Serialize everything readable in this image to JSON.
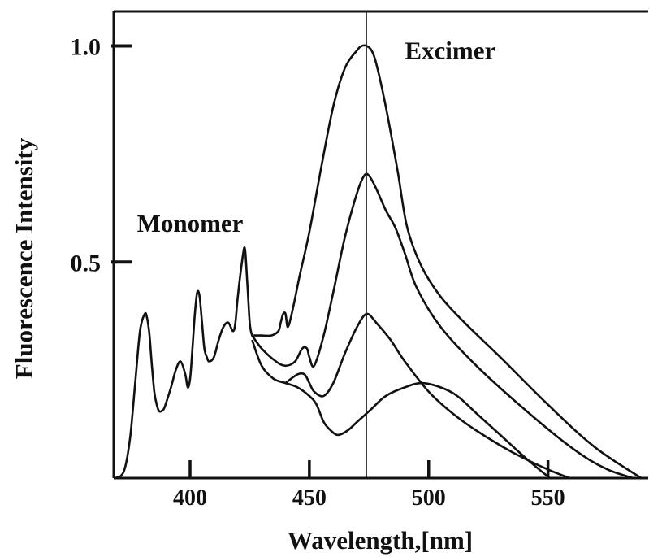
{
  "chart_data": {
    "type": "line",
    "title": "",
    "xlabel": "Wavelength,[nm]",
    "ylabel": "Fluorescence Intensity",
    "xlim": [
      368,
      592
    ],
    "ylim": [
      0,
      1.08
    ],
    "xticks": [
      400,
      450,
      500,
      550
    ],
    "xtick_labels": [
      "400",
      "450",
      "500",
      "550"
    ],
    "yticks": [
      0.5,
      1.0
    ],
    "ytick_labels": [
      "0.5",
      "1.0"
    ],
    "grid": false,
    "reference_line_x": 474,
    "annotations": [
      {
        "text": "Monomer",
        "x": 400,
        "y": 0.57
      },
      {
        "text": "Excimer",
        "x": 490,
        "y": 0.97
      }
    ],
    "series": [
      {
        "x": [
          368,
          371,
          373,
          375,
          377,
          379,
          381,
          382,
          383,
          384,
          385,
          386,
          387,
          388,
          389,
          390,
          392,
          394,
          396,
          398,
          399,
          400,
          401,
          402,
          403,
          404,
          405,
          406,
          407,
          408,
          410,
          412,
          414,
          416,
          418,
          419,
          420,
          422,
          423,
          424,
          425,
          426,
          427,
          430,
          434,
          437,
          438,
          439,
          440,
          441,
          443,
          446,
          450,
          455,
          460,
          465,
          470,
          472,
          474,
          476,
          478,
          482,
          487,
          491,
          497,
          505,
          515,
          530,
          550,
          570,
          592
        ],
        "y": [
          0,
          0.005,
          0.03,
          0.1,
          0.22,
          0.34,
          0.38,
          0.37,
          0.33,
          0.26,
          0.2,
          0.17,
          0.155,
          0.155,
          0.16,
          0.175,
          0.21,
          0.25,
          0.27,
          0.24,
          0.21,
          0.23,
          0.3,
          0.38,
          0.43,
          0.42,
          0.36,
          0.3,
          0.28,
          0.27,
          0.28,
          0.32,
          0.35,
          0.36,
          0.34,
          0.36,
          0.42,
          0.51,
          0.53,
          0.45,
          0.36,
          0.33,
          0.33,
          0.33,
          0.33,
          0.34,
          0.36,
          0.38,
          0.38,
          0.35,
          0.39,
          0.47,
          0.57,
          0.72,
          0.86,
          0.95,
          0.99,
          1.0,
          1.0,
          0.99,
          0.96,
          0.86,
          0.71,
          0.58,
          0.49,
          0.42,
          0.36,
          0.28,
          0.17,
          0.07,
          -0.01
        ]
      },
      {
        "x": [
          426,
          430,
          436,
          440,
          444,
          447,
          449,
          450,
          452,
          456,
          460,
          465,
          470,
          473,
          475,
          478,
          482,
          486,
          490,
          495,
          505,
          520,
          540,
          560,
          575,
          592
        ],
        "y": [
          0.33,
          0.3,
          0.27,
          0.26,
          0.27,
          0.3,
          0.3,
          0.28,
          0.26,
          0.33,
          0.43,
          0.56,
          0.66,
          0.7,
          0.7,
          0.67,
          0.62,
          0.58,
          0.52,
          0.44,
          0.35,
          0.26,
          0.16,
          0.07,
          0.02,
          -0.01
        ]
      },
      {
        "x": [
          440,
          445,
          448,
          450,
          452,
          456,
          460,
          465,
          470,
          474,
          478,
          484,
          490,
          500,
          510,
          520,
          535,
          550,
          564
        ],
        "y": [
          0.22,
          0.24,
          0.24,
          0.22,
          0.2,
          0.19,
          0.22,
          0.29,
          0.35,
          0.38,
          0.36,
          0.32,
          0.27,
          0.2,
          0.15,
          0.11,
          0.06,
          0.02,
          -0.01
        ]
      },
      {
        "x": [
          426,
          430,
          435,
          440,
          445,
          450,
          453,
          456,
          459,
          462,
          466,
          470,
          476,
          482,
          490,
          497,
          505,
          512,
          520,
          530,
          542,
          553
        ],
        "y": [
          0.32,
          0.26,
          0.23,
          0.22,
          0.21,
          0.19,
          0.17,
          0.13,
          0.11,
          0.1,
          0.11,
          0.13,
          0.16,
          0.19,
          0.21,
          0.22,
          0.21,
          0.19,
          0.15,
          0.1,
          0.04,
          -0.01
        ]
      }
    ]
  }
}
